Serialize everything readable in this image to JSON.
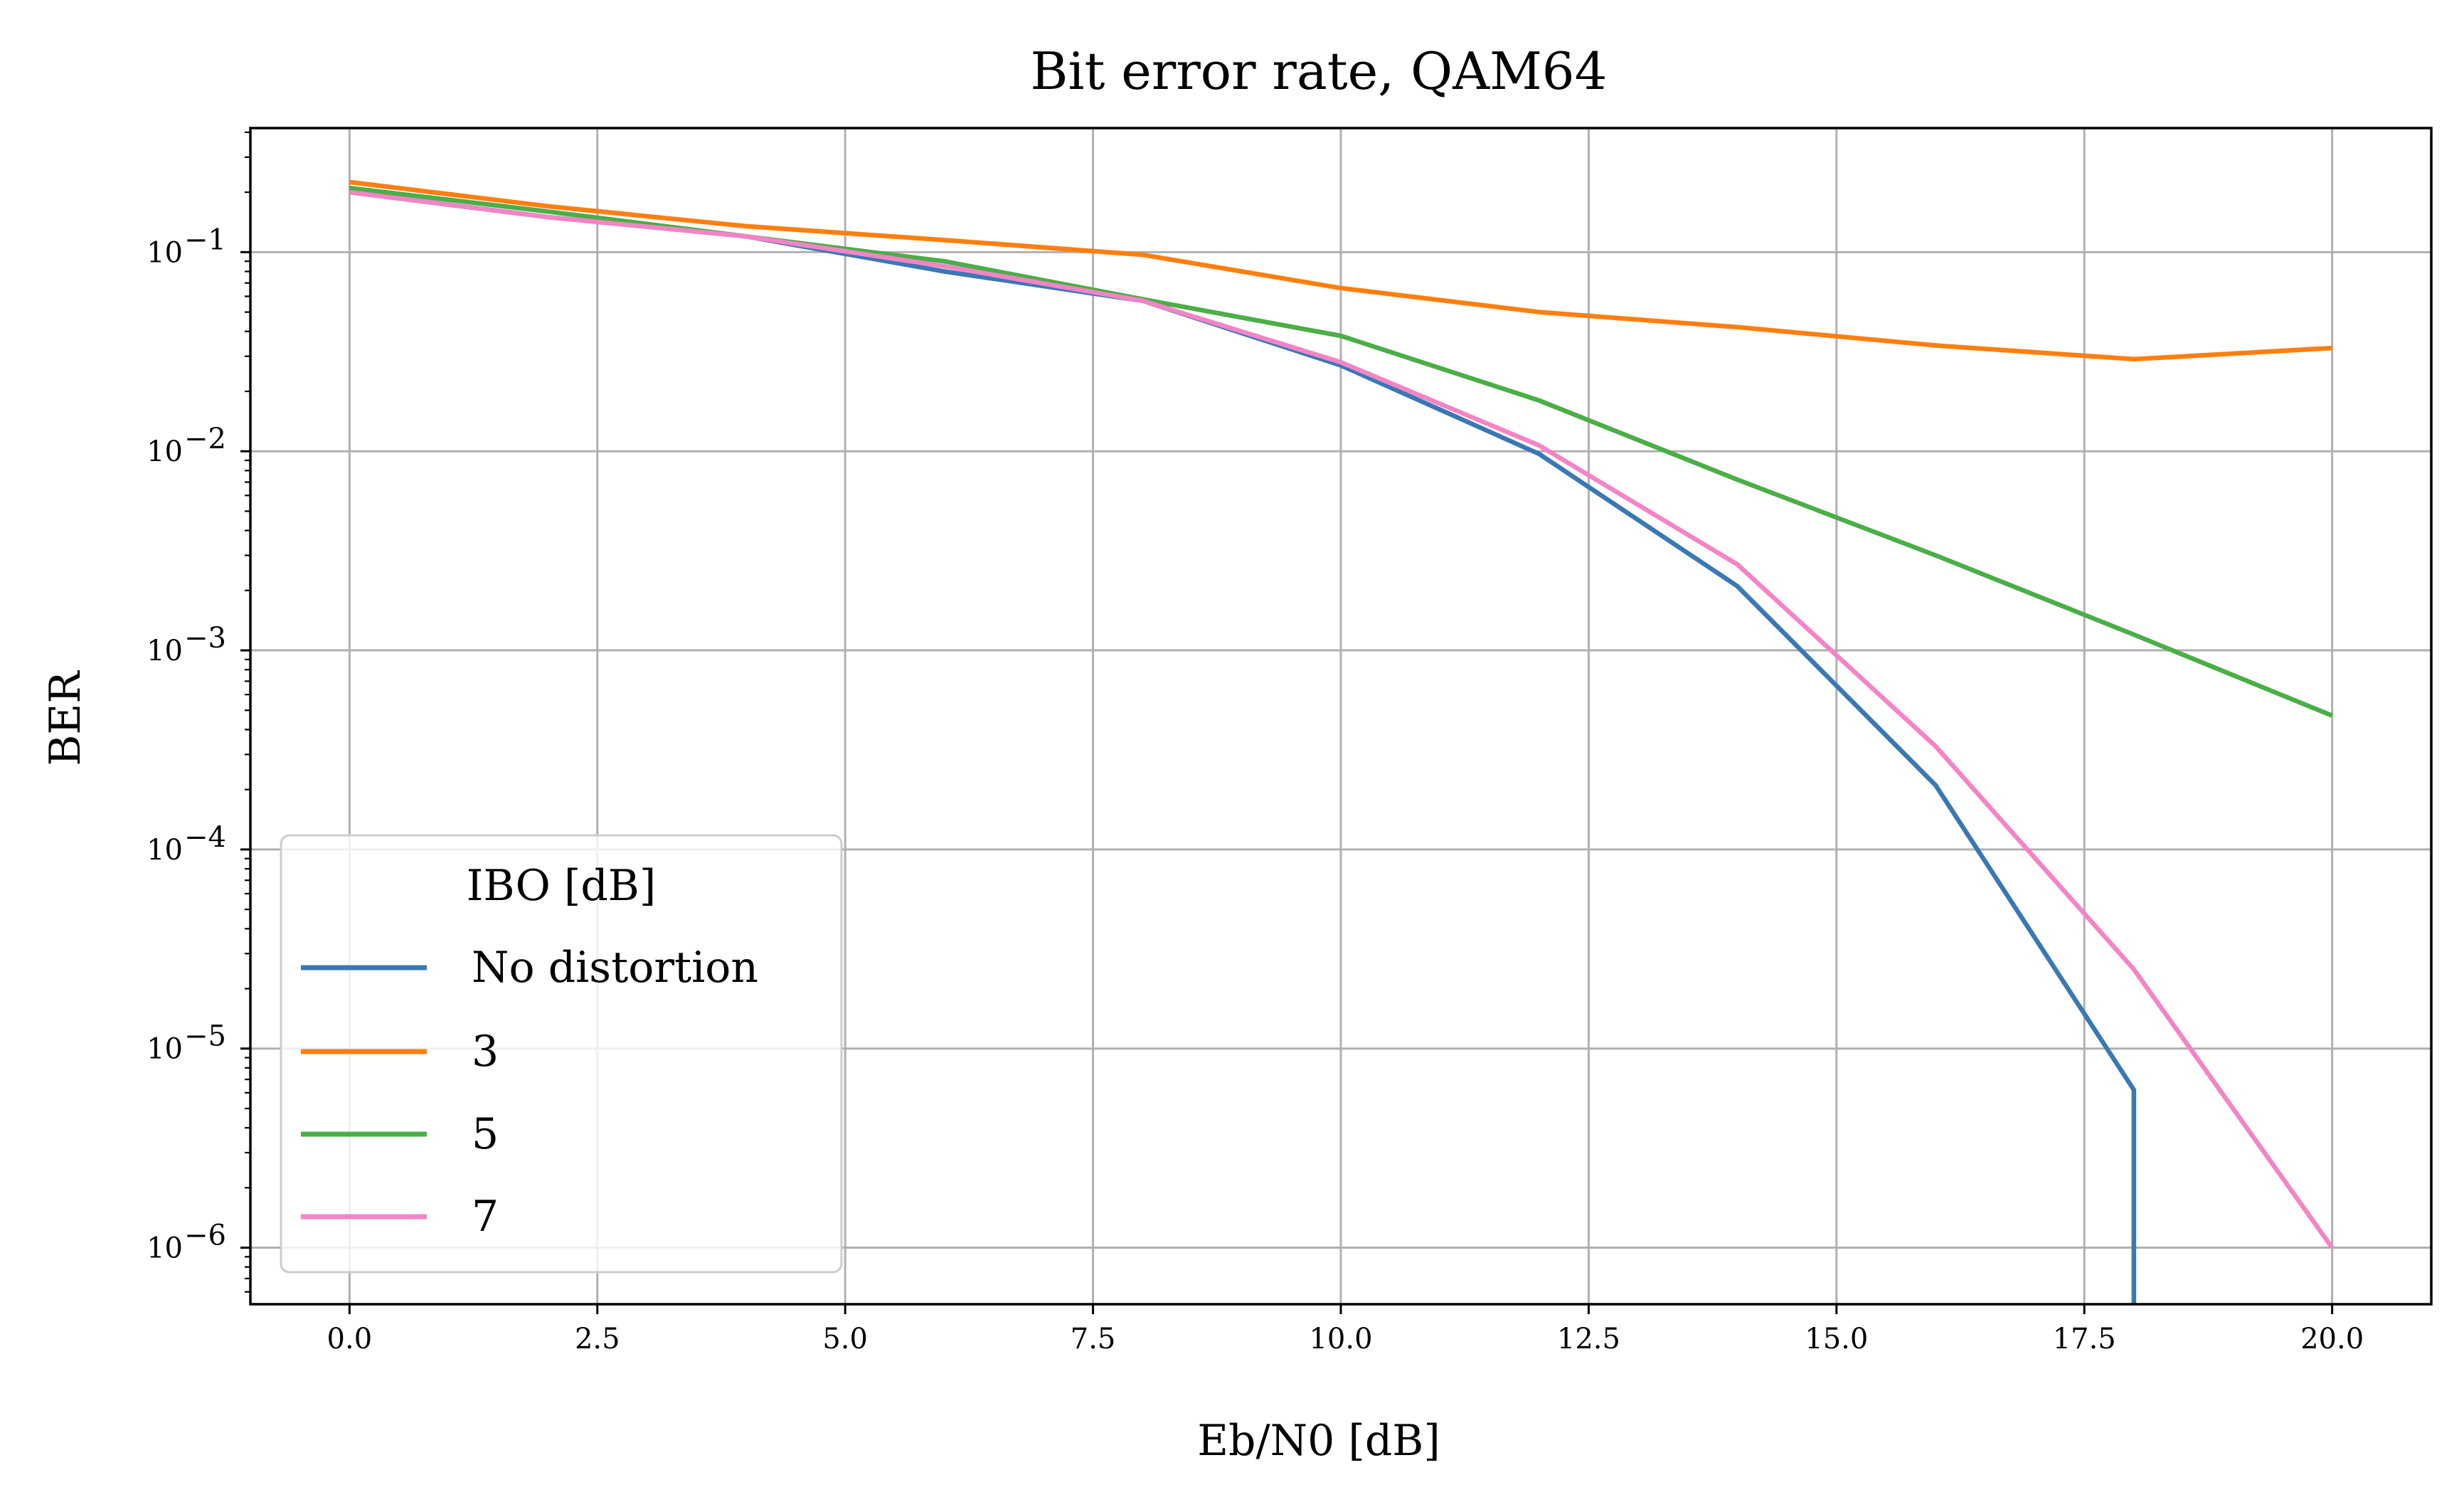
{
  "chart_data": {
    "type": "line",
    "title": "Bit error rate, QAM64",
    "xlabel": "Eb/N0 [dB]",
    "ylabel": "BER",
    "xlim": [
      -1,
      21
    ],
    "ylim": [
      5.2e-07,
      0.42
    ],
    "y_scale": "log",
    "grid": true,
    "x_ticks": [
      0.0,
      2.5,
      5.0,
      7.5,
      10.0,
      12.5,
      15.0,
      17.5,
      20.0
    ],
    "x_tick_labels": [
      "0.0",
      "2.5",
      "5.0",
      "7.5",
      "10.0",
      "12.5",
      "15.0",
      "17.5",
      "20.0"
    ],
    "y_ticks": [
      -1,
      -2,
      -3,
      -4,
      -5,
      -6
    ],
    "y_tick_labels": [
      "10",
      "10",
      "10",
      "10",
      "10",
      "10"
    ],
    "y_tick_exponents": [
      "−1",
      "−2",
      "−3",
      "−4",
      "−5",
      "−6"
    ],
    "legend": {
      "title": "IBO [dB]",
      "placement": "lower-left"
    },
    "series": [
      {
        "name": "No distortion",
        "color": "#3a78b4",
        "x": [
          0,
          2,
          4,
          6,
          8,
          10,
          12,
          14,
          16,
          18,
          18
        ],
        "y": [
          0.2,
          0.15,
          0.12,
          0.08,
          0.057,
          0.027,
          0.0097,
          0.0021,
          0.00021,
          6.2e-06,
          5.2e-07
        ]
      },
      {
        "name": "3",
        "color": "#ff7f0e",
        "x": [
          0,
          2,
          4,
          6,
          8,
          10,
          12,
          14,
          16,
          18,
          20
        ],
        "y": [
          0.225,
          0.17,
          0.135,
          0.115,
          0.097,
          0.066,
          0.05,
          0.042,
          0.034,
          0.029,
          0.033
        ]
      },
      {
        "name": "5",
        "color": "#4bae47",
        "x": [
          0,
          2,
          4,
          6,
          8,
          10,
          12,
          14,
          16,
          18,
          20
        ],
        "y": [
          0.21,
          0.16,
          0.12,
          0.09,
          0.058,
          0.038,
          0.018,
          0.0072,
          0.003,
          0.0012,
          0.00047
        ]
      },
      {
        "name": "7",
        "color": "#f384c5",
        "x": [
          0,
          2,
          4,
          6,
          8,
          10,
          12,
          14,
          16,
          18,
          20
        ],
        "y": [
          0.2,
          0.15,
          0.12,
          0.085,
          0.057,
          0.028,
          0.0107,
          0.0027,
          0.00033,
          2.5e-05,
          1e-06
        ]
      }
    ]
  }
}
